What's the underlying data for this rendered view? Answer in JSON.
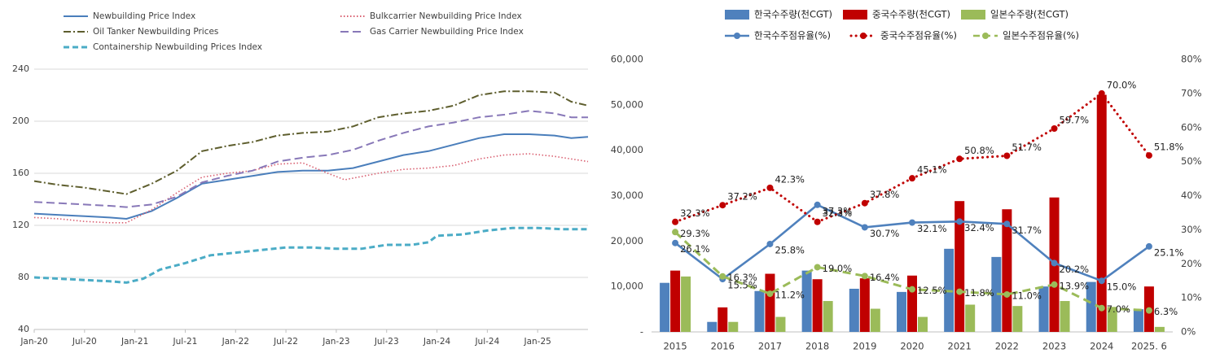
{
  "chart_data": [
    {
      "type": "line",
      "title": "",
      "xlabel": "",
      "ylabel": "",
      "ylim": [
        40,
        240
      ],
      "yticks": [
        40,
        80,
        120,
        160,
        200,
        240
      ],
      "xticks": [
        "Jan-20",
        "Jul-20",
        "Jan-21",
        "Jul-21",
        "Jan-22",
        "Jul-22",
        "Jan-23",
        "Jul-23",
        "Jan-24",
        "Jul-24",
        "Jan-25"
      ],
      "x_start": "2020-01",
      "x_end": "2025-07",
      "grid": "horizontal",
      "legend_position": "top",
      "series": [
        {
          "name": "Newbuilding Price Index",
          "color": "#4a7ebb",
          "style": "solid",
          "points": [
            [
              "2020-01",
              129
            ],
            [
              "2020-04",
              128
            ],
            [
              "2020-07",
              127
            ],
            [
              "2020-10",
              126
            ],
            [
              "2020-12",
              125
            ],
            [
              "2021-03",
              131
            ],
            [
              "2021-06",
              141
            ],
            [
              "2021-09",
              152
            ],
            [
              "2021-12",
              155
            ],
            [
              "2022-03",
              158
            ],
            [
              "2022-06",
              161
            ],
            [
              "2022-09",
              162
            ],
            [
              "2022-12",
              162
            ],
            [
              "2023-03",
              164
            ],
            [
              "2023-06",
              169
            ],
            [
              "2023-09",
              174
            ],
            [
              "2023-12",
              177
            ],
            [
              "2024-03",
              182
            ],
            [
              "2024-06",
              187
            ],
            [
              "2024-09",
              190
            ],
            [
              "2024-12",
              190
            ],
            [
              "2025-03",
              189
            ],
            [
              "2025-05",
              187
            ],
            [
              "2025-07",
              188
            ]
          ]
        },
        {
          "name": "Bulkcarrier Newbuilding Price Index",
          "color": "#d95f70",
          "style": "dotted",
          "points": [
            [
              "2020-01",
              126
            ],
            [
              "2020-04",
              125
            ],
            [
              "2020-07",
              123
            ],
            [
              "2020-10",
              122
            ],
            [
              "2020-12",
              122
            ],
            [
              "2021-03",
              132
            ],
            [
              "2021-06",
              145
            ],
            [
              "2021-09",
              157
            ],
            [
              "2021-12",
              160
            ],
            [
              "2022-03",
              162
            ],
            [
              "2022-06",
              167
            ],
            [
              "2022-09",
              168
            ],
            [
              "2022-12",
              160
            ],
            [
              "2023-02",
              155
            ],
            [
              "2023-06",
              160
            ],
            [
              "2023-09",
              163
            ],
            [
              "2023-12",
              164
            ],
            [
              "2024-03",
              166
            ],
            [
              "2024-06",
              171
            ],
            [
              "2024-09",
              174
            ],
            [
              "2024-12",
              175
            ],
            [
              "2025-03",
              173
            ],
            [
              "2025-05",
              171
            ],
            [
              "2025-07",
              169
            ]
          ]
        },
        {
          "name": "Oil Tanker Newbuilding Prices",
          "color": "#5e5e2e",
          "style": "dash-dot",
          "points": [
            [
              "2020-01",
              154
            ],
            [
              "2020-04",
              151
            ],
            [
              "2020-07",
              149
            ],
            [
              "2020-10",
              146
            ],
            [
              "2020-12",
              144
            ],
            [
              "2021-03",
              152
            ],
            [
              "2021-06",
              162
            ],
            [
              "2021-09",
              177
            ],
            [
              "2021-12",
              181
            ],
            [
              "2022-03",
              184
            ],
            [
              "2022-06",
              189
            ],
            [
              "2022-09",
              191
            ],
            [
              "2022-12",
              192
            ],
            [
              "2023-03",
              196
            ],
            [
              "2023-06",
              203
            ],
            [
              "2023-09",
              206
            ],
            [
              "2023-12",
              208
            ],
            [
              "2024-03",
              212
            ],
            [
              "2024-06",
              220
            ],
            [
              "2024-09",
              223
            ],
            [
              "2024-12",
              223
            ],
            [
              "2025-03",
              222
            ],
            [
              "2025-05",
              215
            ],
            [
              "2025-07",
              212
            ]
          ]
        },
        {
          "name": "Gas Carrier Newbuilding Price Index",
          "color": "#8878b8",
          "style": "dashed",
          "points": [
            [
              "2020-01",
              138
            ],
            [
              "2020-04",
              137
            ],
            [
              "2020-07",
              136
            ],
            [
              "2020-10",
              135
            ],
            [
              "2020-12",
              134
            ],
            [
              "2021-03",
              136
            ],
            [
              "2021-06",
              142
            ],
            [
              "2021-09",
              153
            ],
            [
              "2021-12",
              158
            ],
            [
              "2022-03",
              162
            ],
            [
              "2022-06",
              169
            ],
            [
              "2022-09",
              172
            ],
            [
              "2022-12",
              174
            ],
            [
              "2023-03",
              178
            ],
            [
              "2023-06",
              185
            ],
            [
              "2023-09",
              191
            ],
            [
              "2023-12",
              196
            ],
            [
              "2024-03",
              199
            ],
            [
              "2024-06",
              203
            ],
            [
              "2024-09",
              205
            ],
            [
              "2024-12",
              208
            ],
            [
              "2025-03",
              206
            ],
            [
              "2025-05",
              203
            ],
            [
              "2025-07",
              203
            ]
          ]
        },
        {
          "name": "Containership Newbuilding Prices Index",
          "color": "#4bacc6",
          "style": "dashed-thick",
          "points": [
            [
              "2020-01",
              80
            ],
            [
              "2020-04",
              79
            ],
            [
              "2020-07",
              78
            ],
            [
              "2020-10",
              77
            ],
            [
              "2020-12",
              76
            ],
            [
              "2021-02",
              79
            ],
            [
              "2021-04",
              86
            ],
            [
              "2021-07",
              91
            ],
            [
              "2021-10",
              97
            ],
            [
              "2022-01",
              99
            ],
            [
              "2022-04",
              101
            ],
            [
              "2022-07",
              103
            ],
            [
              "2022-10",
              103
            ],
            [
              "2023-01",
              102
            ],
            [
              "2023-04",
              102
            ],
            [
              "2023-07",
              105
            ],
            [
              "2023-10",
              105
            ],
            [
              "2023-12",
              107
            ],
            [
              "2024-01",
              112
            ],
            [
              "2024-04",
              113
            ],
            [
              "2024-07",
              116
            ],
            [
              "2024-10",
              118
            ],
            [
              "2025-01",
              118
            ],
            [
              "2025-04",
              117
            ],
            [
              "2025-07",
              117
            ]
          ]
        }
      ]
    },
    {
      "type": "bar",
      "title": "",
      "xlabel": "",
      "ylabel": "",
      "categories": [
        "2015",
        "2016",
        "2017",
        "2018",
        "2019",
        "2020",
        "2021",
        "2022",
        "2023",
        "2024",
        "2025. 6"
      ],
      "ylim": [
        0,
        60000
      ],
      "yticks": [
        "-",
        "10,000",
        "20,000",
        "30,000",
        "40,000",
        "50,000",
        "60,000"
      ],
      "y2lim": [
        0,
        80
      ],
      "y2ticks": [
        "0%",
        "10%",
        "20%",
        "30%",
        "40%",
        "50%",
        "60%",
        "70%",
        "80%"
      ],
      "legend_position": "top",
      "bar_series": [
        {
          "name": "한국수주량(천CGT)",
          "color": "#4f81bd",
          "values": [
            10800,
            2200,
            9000,
            13500,
            9500,
            8800,
            18300,
            16500,
            10000,
            11000,
            5000
          ]
        },
        {
          "name": "중국수주량(천CGT)",
          "color": "#c00000",
          "values": [
            13500,
            5400,
            12800,
            11600,
            11800,
            12400,
            28800,
            27000,
            29600,
            52200,
            10000
          ]
        },
        {
          "name": "일본수주량(천CGT)",
          "color": "#9bbb59",
          "values": [
            12200,
            2200,
            3300,
            6800,
            5100,
            3300,
            6000,
            5700,
            6800,
            5500,
            1100
          ]
        }
      ],
      "line_series": [
        {
          "name": "한국수주점유율(%)",
          "color": "#4f81bd",
          "style": "solid",
          "values": [
            26.1,
            15.5,
            25.8,
            37.3,
            30.7,
            32.1,
            32.4,
            31.7,
            20.2,
            15.0,
            25.1
          ],
          "labels": [
            "26.1%",
            "15.5%",
            "25.8%",
            "37.3%",
            "30.7%",
            "32.1%",
            "32.4%",
            "31.7%",
            "20.2%",
            "15.0%",
            "25.1%"
          ]
        },
        {
          "name": "중국수주점유율(%)",
          "color": "#c00000",
          "style": "dotted",
          "values": [
            32.3,
            37.2,
            42.3,
            32.3,
            37.8,
            45.1,
            50.8,
            51.7,
            59.7,
            70.0,
            51.8
          ],
          "labels": [
            "32.3%",
            "37.2%",
            "42.3%",
            "32.3%",
            "37.8%",
            "45.1%",
            "50.8%",
            "51.7%",
            "59.7%",
            "70.0%",
            "51.8%"
          ]
        },
        {
          "name": "일본수주점유율(%)",
          "color": "#9bbb59",
          "style": "dashed",
          "values": [
            29.3,
            16.3,
            11.2,
            19.0,
            16.4,
            12.5,
            11.8,
            11.0,
            13.9,
            7.0,
            6.3
          ],
          "labels": [
            "29.3%",
            "16.3%",
            "11.2%",
            "19.0%",
            "16.4%",
            "12.5%",
            "11.8%",
            "11.0%",
            "13.9%",
            "7.0%",
            "6.3%"
          ]
        }
      ]
    }
  ]
}
